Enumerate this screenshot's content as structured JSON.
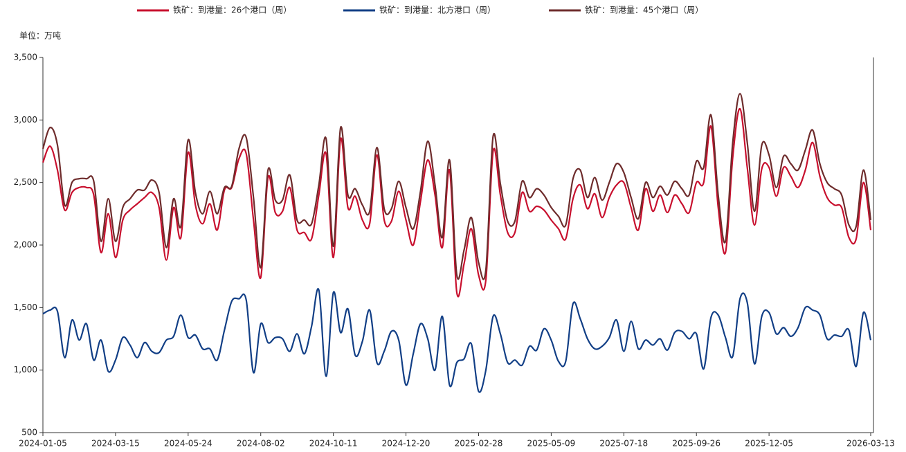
{
  "chart_data": {
    "type": "line",
    "unit_label": "单位：万吨",
    "x": [
      "2024-01-05",
      "2024-01-12",
      "2024-01-19",
      "2024-01-26",
      "2024-02-02",
      "2024-02-09",
      "2024-02-16",
      "2024-02-23",
      "2024-03-01",
      "2024-03-08",
      "2024-03-15",
      "2024-03-22",
      "2024-03-29",
      "2024-04-05",
      "2024-04-12",
      "2024-04-19",
      "2024-04-26",
      "2024-05-03",
      "2024-05-10",
      "2024-05-17",
      "2024-05-24",
      "2024-05-31",
      "2024-06-07",
      "2024-06-14",
      "2024-06-21",
      "2024-06-28",
      "2024-07-05",
      "2024-07-12",
      "2024-07-19",
      "2024-07-26",
      "2024-08-02",
      "2024-08-09",
      "2024-08-16",
      "2024-08-23",
      "2024-08-30",
      "2024-09-06",
      "2024-09-13",
      "2024-09-20",
      "2024-09-27",
      "2024-10-04",
      "2024-10-11",
      "2024-10-18",
      "2024-10-25",
      "2024-11-01",
      "2024-11-08",
      "2024-11-15",
      "2024-11-22",
      "2024-11-29",
      "2024-12-06",
      "2024-12-13",
      "2024-12-20",
      "2024-12-27",
      "2025-01-03",
      "2025-01-10",
      "2025-01-17",
      "2025-01-24",
      "2025-01-31",
      "2025-02-07",
      "2025-02-14",
      "2025-02-21",
      "2025-02-28",
      "2025-03-07",
      "2025-03-14",
      "2025-03-21",
      "2025-03-28",
      "2025-04-04",
      "2025-04-11",
      "2025-04-18",
      "2025-04-25",
      "2025-05-02",
      "2025-05-09",
      "2025-05-16",
      "2025-05-23",
      "2025-05-30",
      "2025-06-06",
      "2025-06-13",
      "2025-06-20",
      "2025-06-27",
      "2025-07-04",
      "2025-07-11",
      "2025-07-18",
      "2025-07-25",
      "2025-08-01",
      "2025-08-08",
      "2025-08-15",
      "2025-08-22",
      "2025-08-29",
      "2025-09-05",
      "2025-09-12",
      "2025-09-19",
      "2025-09-26",
      "2025-10-03",
      "2025-10-10",
      "2025-10-17",
      "2025-10-24",
      "2025-10-31",
      "2025-11-07",
      "2025-11-14",
      "2025-11-21",
      "2025-11-28",
      "2025-12-05",
      "2025-12-12",
      "2025-12-19",
      "2025-12-26",
      "2026-01-02",
      "2026-01-09",
      "2026-01-16",
      "2026-01-23",
      "2026-01-30",
      "2026-02-06",
      "2026-02-13",
      "2026-02-20",
      "2026-02-27",
      "2026-03-06",
      "2026-03-13"
    ],
    "xticks": [
      "2024-01-05",
      "2024-03-15",
      "2024-05-24",
      "2024-08-02",
      "2024-10-11",
      "2024-12-20",
      "2025-02-28",
      "2025-05-09",
      "2025-07-18",
      "2025-09-26",
      "2025-12-05",
      "2026-03-13"
    ],
    "ylim": [
      500,
      3500
    ],
    "yticks": [
      500,
      {
        "value": 1000,
        "label": "1,000"
      },
      {
        "value": 1500,
        "label": "1,500"
      },
      {
        "value": 2000,
        "label": "2,000"
      },
      {
        "value": 2500,
        "label": "2,500"
      },
      {
        "value": 3000,
        "label": "3,000"
      },
      {
        "value": 3500,
        "label": "3,500"
      }
    ],
    "grid": false,
    "smooth": true,
    "legend": "top",
    "series": [
      {
        "name": "铁矿：到港量：26个港口（周）",
        "color": "#c8102e",
        "values": [
          2660,
          2790,
          2600,
          2280,
          2420,
          2460,
          2460,
          2400,
          1940,
          2250,
          1900,
          2200,
          2280,
          2330,
          2380,
          2420,
          2300,
          1880,
          2300,
          2060,
          2740,
          2320,
          2170,
          2330,
          2120,
          2440,
          2460,
          2690,
          2730,
          2200,
          1740,
          2540,
          2260,
          2270,
          2460,
          2120,
          2100,
          2050,
          2400,
          2730,
          1900,
          2850,
          2300,
          2390,
          2200,
          2170,
          2720,
          2200,
          2190,
          2430,
          2200,
          2000,
          2350,
          2680,
          2400,
          1980,
          2600,
          1620,
          1850,
          2130,
          1760,
          1720,
          2750,
          2400,
          2100,
          2100,
          2420,
          2270,
          2310,
          2280,
          2200,
          2130,
          2050,
          2370,
          2480,
          2290,
          2410,
          2220,
          2380,
          2480,
          2500,
          2300,
          2120,
          2450,
          2270,
          2400,
          2260,
          2400,
          2330,
          2260,
          2500,
          2500,
          2950,
          2300,
          1940,
          2700,
          3090,
          2620,
          2160,
          2610,
          2620,
          2390,
          2620,
          2550,
          2460,
          2600,
          2820,
          2550,
          2380,
          2320,
          2300,
          2060,
          2050,
          2500,
          2120
        ]
      },
      {
        "name": "铁矿：到港量：北方港口（周）",
        "color": "#123f86",
        "values": [
          1450,
          1480,
          1470,
          1100,
          1400,
          1240,
          1370,
          1080,
          1240,
          990,
          1080,
          1260,
          1200,
          1100,
          1220,
          1150,
          1140,
          1240,
          1270,
          1440,
          1260,
          1280,
          1170,
          1170,
          1080,
          1320,
          1550,
          1570,
          1560,
          980,
          1370,
          1220,
          1260,
          1250,
          1150,
          1290,
          1130,
          1350,
          1640,
          950,
          1620,
          1300,
          1490,
          1120,
          1230,
          1480,
          1060,
          1150,
          1310,
          1240,
          880,
          1130,
          1370,
          1250,
          1000,
          1430,
          880,
          1060,
          1090,
          1210,
          830,
          1000,
          1430,
          1290,
          1060,
          1080,
          1040,
          1190,
          1160,
          1330,
          1240,
          1070,
          1070,
          1530,
          1410,
          1250,
          1170,
          1190,
          1260,
          1400,
          1150,
          1390,
          1170,
          1240,
          1200,
          1250,
          1160,
          1300,
          1310,
          1250,
          1290,
          1010,
          1420,
          1440,
          1260,
          1110,
          1570,
          1540,
          1050,
          1430,
          1460,
          1290,
          1340,
          1270,
          1340,
          1500,
          1480,
          1440,
          1250,
          1280,
          1270,
          1320,
          1030,
          1460,
          1240
        ]
      },
      {
        "name": "铁矿：到港量：45个港口（周）",
        "color": "#6e2c2c",
        "values": [
          2770,
          2940,
          2800,
          2320,
          2500,
          2530,
          2530,
          2510,
          2030,
          2370,
          2030,
          2300,
          2370,
          2440,
          2440,
          2520,
          2420,
          1980,
          2370,
          2150,
          2840,
          2420,
          2250,
          2430,
          2250,
          2460,
          2470,
          2770,
          2860,
          2380,
          1820,
          2600,
          2360,
          2360,
          2560,
          2200,
          2200,
          2170,
          2480,
          2850,
          1990,
          2940,
          2400,
          2450,
          2320,
          2270,
          2780,
          2290,
          2290,
          2510,
          2300,
          2130,
          2430,
          2830,
          2480,
          2060,
          2680,
          1760,
          1960,
          2220,
          1860,
          1800,
          2870,
          2490,
          2190,
          2190,
          2510,
          2380,
          2450,
          2400,
          2300,
          2230,
          2160,
          2530,
          2600,
          2380,
          2540,
          2360,
          2500,
          2650,
          2580,
          2380,
          2210,
          2500,
          2380,
          2470,
          2400,
          2510,
          2450,
          2400,
          2670,
          2620,
          3040,
          2400,
          2030,
          2820,
          3210,
          2820,
          2270,
          2800,
          2720,
          2460,
          2710,
          2650,
          2600,
          2760,
          2920,
          2650,
          2500,
          2450,
          2400,
          2160,
          2150,
          2600,
          2200
        ]
      }
    ]
  }
}
